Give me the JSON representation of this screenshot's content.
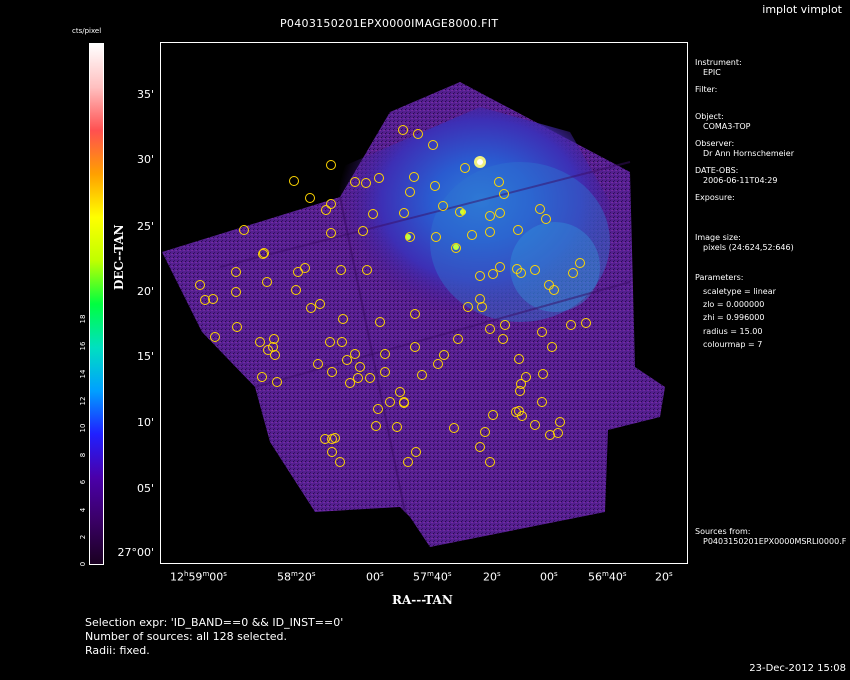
{
  "window": {
    "title": "implot vimplot"
  },
  "plot": {
    "title": "P0403150201EPX0000IMAGE8000.FIT"
  },
  "colorbar": {
    "label": "cts/pixel",
    "ticks": [
      "0",
      "2",
      "4",
      "6",
      "8",
      "10",
      "12",
      "14",
      "16",
      "18"
    ],
    "colormap": [
      "#1a0021",
      "#3a0066",
      "#4a00aa",
      "#2020ff",
      "#00a0ff",
      "#00e0c0",
      "#00ff40",
      "#c0ff00",
      "#ffff00",
      "#ffa000",
      "#ff5050",
      "#ffc0c0",
      "#ffffff"
    ]
  },
  "axes": {
    "ylabel": "DEC--TAN",
    "xlabel": "RA---TAN",
    "yticks": [
      "35'",
      "30'",
      "25'",
      "20'",
      "15'",
      "10'",
      "05'",
      "27°00'"
    ],
    "xticks": [
      {
        "main": "12",
        "sup": "h",
        "main2": "59",
        "sup2": "m",
        "main3": "00",
        "sup3": "s"
      },
      {
        "main": "58",
        "sup": "m",
        "main2": "20",
        "sup2": "s",
        "main3": "",
        "sup3": ""
      },
      {
        "main": "00",
        "sup": "s",
        "main2": "",
        "sup2": "",
        "main3": "",
        "sup3": ""
      },
      {
        "main": "57",
        "sup": "m",
        "main2": "40",
        "sup2": "s",
        "main3": "",
        "sup3": ""
      },
      {
        "main": "20",
        "sup": "s",
        "main2": "",
        "sup2": "",
        "main3": "",
        "sup3": ""
      },
      {
        "main": "00",
        "sup": "s",
        "main2": "",
        "sup2": "",
        "main3": "",
        "sup3": ""
      },
      {
        "main": "56",
        "sup": "m",
        "main2": "40",
        "sup2": "s",
        "main3": "",
        "sup3": ""
      },
      {
        "main": "20",
        "sup": "s",
        "main2": "",
        "sup2": "",
        "main3": "",
        "sup3": ""
      }
    ]
  },
  "info": {
    "instrument_label": "Instrument:",
    "instrument_value": "EPIC",
    "filter_label": "Filter:",
    "object_label": "Object:",
    "object_value": "COMA3-TOP",
    "observer_label": "Observer:",
    "observer_value": "Dr Ann Hornschemeier",
    "date_label": "DATE-OBS:",
    "date_value": "2006-06-11T04:29",
    "exposure_label": "Exposure:",
    "imagesize_label": "Image size:",
    "imagesize_value": "pixels (24:624,52:646)",
    "params_label": "Parameters:",
    "param_scaletype": "scaletype = linear",
    "param_zlo": "zlo = 0.000000",
    "param_zhi": "zhi = 0.996000",
    "param_radius": "radius = 15.00",
    "param_colourmap": "colourmap = 7",
    "sources_label": "Sources from:",
    "sources_value": "P0403150201EPX0000MSRLI0000.F"
  },
  "footer": {
    "selection": "Selection expr: 'ID_BAND==0 && ID_INST==0'",
    "nsources": "Number of sources: all 128 selected.",
    "radii": "Radii: fixed.",
    "timestamp": "23-Dec-2012 15:08"
  },
  "colors": {
    "source_circle": "#ffd700",
    "field": "#5a1a8a"
  }
}
